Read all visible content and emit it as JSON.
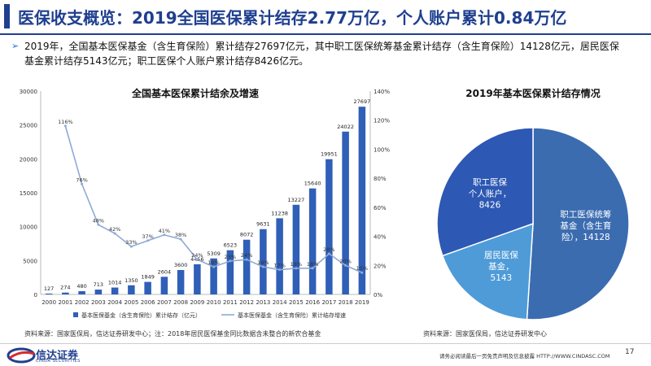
{
  "header": {
    "title": "医保收支概览：2019全国医保累计结存2.77万亿，个人账户累计0.84万亿"
  },
  "summary": {
    "bullet": "➢",
    "text": "2019年，全国基本医保基金（含生育保险）累计结存27697亿元，其中职工医保统筹基金累计结存（含生育保险）14128亿元，居民医保基金累计结存5143亿元；职工医保个人账户累计结存8426亿元。"
  },
  "chart_data": [
    {
      "type": "bar",
      "title": "全国基本医保累计结余及增速",
      "categories": [
        "2000",
        "2001",
        "2002",
        "2003",
        "2004",
        "2005",
        "2006",
        "2007",
        "2008",
        "2009",
        "2010",
        "2011",
        "2012",
        "2013",
        "2014",
        "2015",
        "2016",
        "2017",
        "2018",
        "2019"
      ],
      "series": [
        {
          "name": "基本医保基金（含生育保险）累计结存（亿元）",
          "axis": "left",
          "type": "bar",
          "color": "#2f5fb7",
          "values": [
            127,
            274,
            480,
            713,
            1014,
            1350,
            1849,
            2604,
            3600,
            4456,
            5309,
            6523,
            8072,
            9631,
            11238,
            13227,
            15640,
            19951,
            24022,
            27697
          ]
        },
        {
          "name": "基本医保基金（含生育保险）累计结存增速",
          "axis": "right",
          "type": "line",
          "color": "#8fa9d6",
          "values": [
            null,
            116,
            76,
            48,
            42,
            33,
            37,
            41,
            38,
            24,
            19,
            23,
            24,
            19,
            17,
            18,
            18,
            28,
            20,
            15
          ]
        }
      ],
      "line_labels": [
        "",
        "116%",
        "76%",
        "48%",
        "42%",
        "33%",
        "37%",
        "41%",
        "38%",
        "24%",
        "19%",
        "23%",
        "24%",
        "19%",
        "17%",
        "18%",
        "18%",
        "28%",
        "20%",
        "15%"
      ],
      "left_ticks": [
        "0",
        "5000",
        "10000",
        "15000",
        "20000",
        "25000",
        "30000"
      ],
      "right_ticks": [
        "0%",
        "20%",
        "40%",
        "60%",
        "80%",
        "100%",
        "120%",
        "140%"
      ],
      "ylim": [
        0,
        30000
      ],
      "y2lim": [
        0,
        140
      ],
      "legend_bar": "基本医保基金（含生育保险）累计结存（亿元）",
      "legend_line": "基本医保基金（含生育保险）累计结存增速"
    },
    {
      "type": "pie",
      "title": "2019年基本医保累计结存情况",
      "slices": [
        {
          "label": "职工医保统筹基金（含生育险），14128",
          "value": 14128,
          "color": "#3b6cb0"
        },
        {
          "label": "居民医保基金，5143",
          "value": 5143,
          "color": "#4f9bd8"
        },
        {
          "label": "职工医保个人账户，8426",
          "value": 8426,
          "color": "#2d58b3"
        }
      ]
    }
  ],
  "pie_labels": {
    "slice0": [
      "职工医保统筹",
      "基金（含生育",
      "险），14128"
    ],
    "slice1": [
      "居民医保",
      "基金，",
      "5143"
    ],
    "slice2": [
      "职工医保",
      "个人账户，",
      "8426"
    ]
  },
  "sources": {
    "left": "资料来源：国家医保局，信达证券研发中心；注：2018年居民医保基金同比数据含未整合的新农合基金",
    "right": "资料来源：国家医保局，信达证券研发中心"
  },
  "footer": {
    "logo_text": "信达证券",
    "logo_sub": "CINDA SECURITIES",
    "note": "请务必阅读最后一页免责声明及信息披露   HTTP://WWW.CINDASC.COM",
    "page": "17"
  },
  "colors": {
    "brand": "#1f3f8f",
    "bar": "#2f5fb7",
    "line": "#8fa9d6"
  }
}
